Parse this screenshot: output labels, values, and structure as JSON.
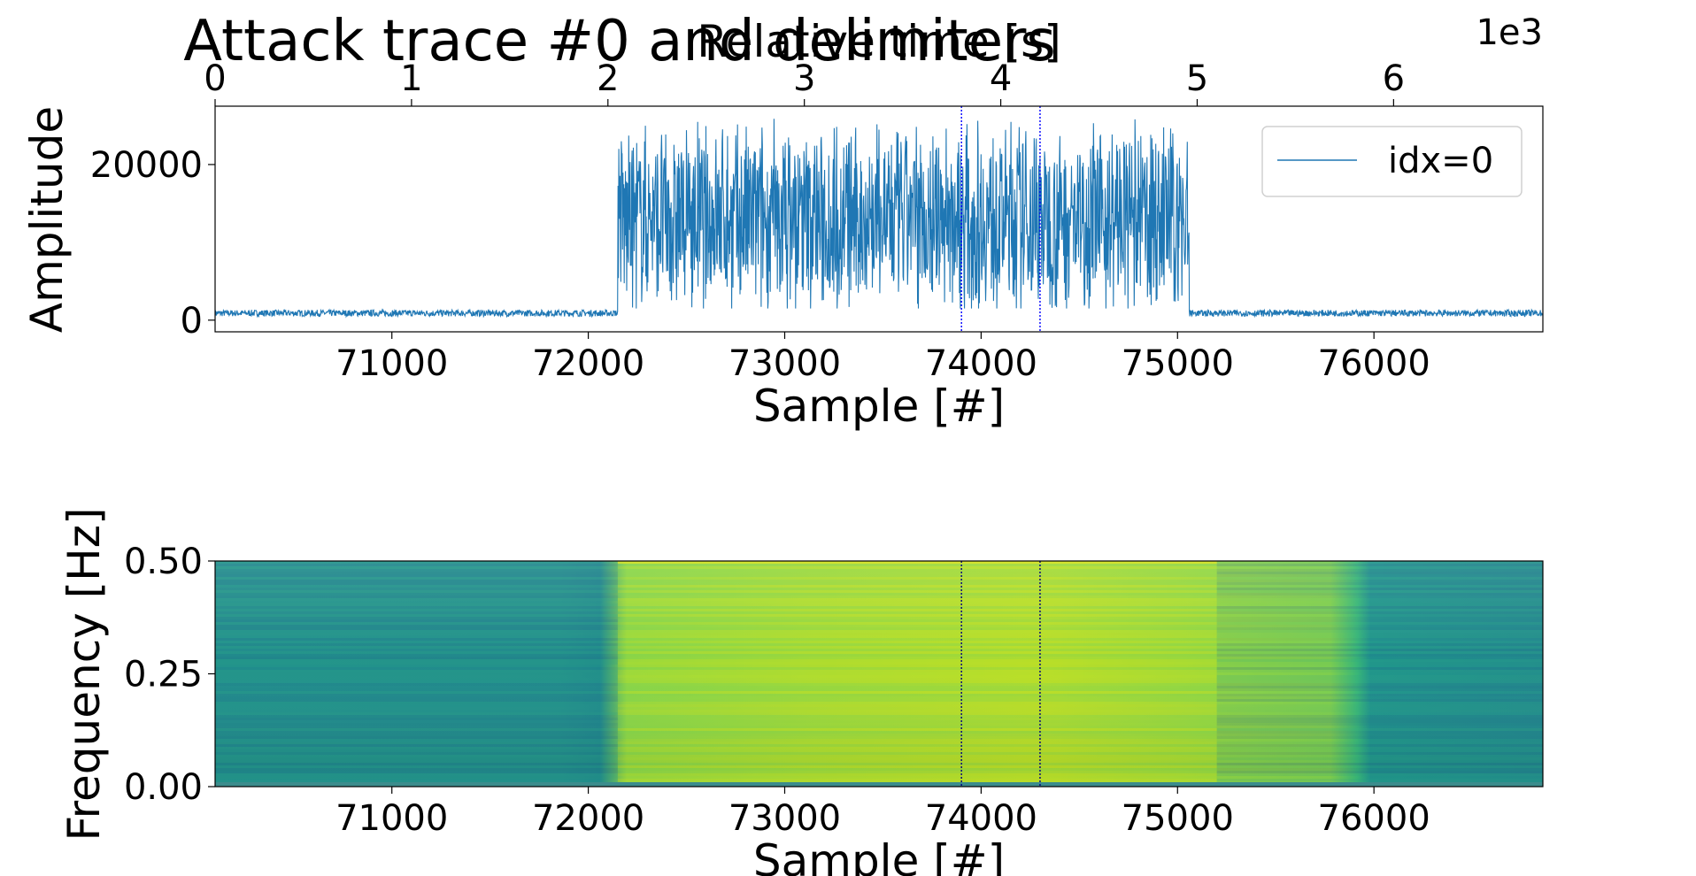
{
  "figure": {
    "title": "Attack trace #0 and delimiters"
  },
  "chart_data": [
    {
      "type": "line",
      "panel": "amplitude",
      "ylabel": "Amplitude",
      "xlabel": "Sample [#]",
      "xlim": [
        70100,
        76860
      ],
      "ylim": [
        -1500,
        27500
      ],
      "x_ticks": [
        71000,
        72000,
        73000,
        74000,
        75000,
        76000
      ],
      "y_ticks": [
        0,
        20000
      ],
      "grid": false,
      "legend": {
        "entries": [
          "idx=0"
        ],
        "placement": "top-right"
      },
      "series": [
        {
          "name": "idx=0",
          "color": "#1f77b4",
          "segments": [
            {
              "x_start": 70100,
              "x_end": 72150,
              "baseline": 900,
              "noise_amplitude": 700
            },
            {
              "x_start": 72150,
              "x_end": 75060,
              "baseline": 13000,
              "noise_amplitude": 13500
            },
            {
              "x_start": 75060,
              "x_end": 76860,
              "baseline": 900,
              "noise_amplitude": 700
            }
          ],
          "peak": 26500
        }
      ],
      "secondary_x_axis": {
        "label": "Relative time [s]",
        "ticks": [
          0,
          1,
          2,
          3,
          4,
          5,
          6
        ],
        "multiplier": "1e3",
        "range": [
          0,
          6.76
        ]
      },
      "delimiters": [
        {
          "x": 73900,
          "color": "#0000ff",
          "style": "dotted"
        },
        {
          "x": 74300,
          "color": "#0000ff",
          "style": "dotted"
        }
      ]
    },
    {
      "type": "heatmap",
      "panel": "spectrogram",
      "ylabel": "Frequency [Hz]",
      "xlabel": "Sample [#]",
      "xlim": [
        70100,
        76860
      ],
      "ylim": [
        0,
        0.5
      ],
      "x_ticks": [
        71000,
        72000,
        73000,
        74000,
        75000,
        76000
      ],
      "y_ticks": [
        "0.00",
        "0.25",
        "0.50"
      ],
      "colormap": "viridis",
      "active_region": [
        72150,
        75200
      ],
      "delimiters": [
        {
          "x": 73900,
          "color": "#000080",
          "style": "dotted"
        },
        {
          "x": 74300,
          "color": "#000080",
          "style": "dotted"
        }
      ]
    }
  ]
}
